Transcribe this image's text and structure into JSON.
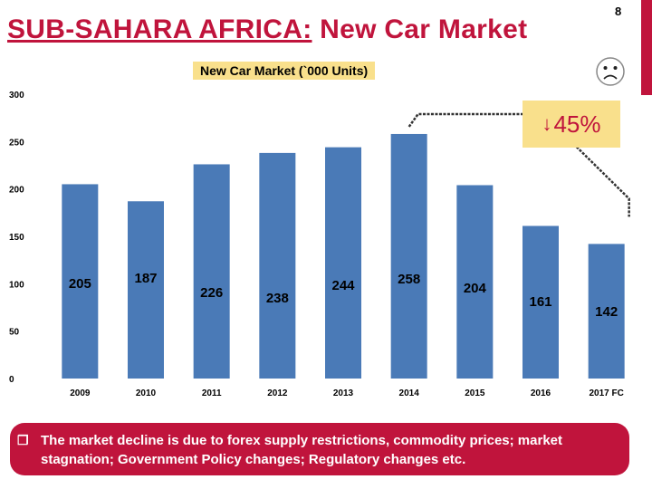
{
  "page_number": "8",
  "title": {
    "region": "SUB-SAHARA AFRICA:",
    "rest": " New Car Market"
  },
  "colors": {
    "accent": "#c0143c",
    "bar": "#4a7ab7",
    "highlight": "#f9e08c"
  },
  "change_badge": {
    "arrow": "↓",
    "text": "45%"
  },
  "note": {
    "bullet": "q",
    "text": "The market decline is due to forex supply restrictions, commodity  prices; market stagnation; Government Policy changes; Regulatory changes etc."
  },
  "chart_data": {
    "type": "bar",
    "title": "New Car Market (`000 Units)",
    "categories": [
      "2009",
      "2010",
      "2011",
      "2012",
      "2013",
      "2014",
      "2015",
      "2016",
      "2017 FC"
    ],
    "values": [
      205,
      187,
      226,
      238,
      244,
      258,
      204,
      161,
      142
    ],
    "data_labels": [
      "205",
      "187",
      "226",
      "238",
      "244",
      "258",
      "204",
      "161",
      "142"
    ],
    "yticks": [
      "0",
      "50",
      "100",
      "150",
      "200",
      "250",
      "300"
    ],
    "ytick_values": [
      0,
      50,
      100,
      150,
      200,
      250,
      300
    ],
    "ylim": [
      0,
      300
    ],
    "xlabel": "",
    "ylabel": "",
    "grid": false,
    "annotation": "decline from 2014 peak to 2017 FC"
  }
}
